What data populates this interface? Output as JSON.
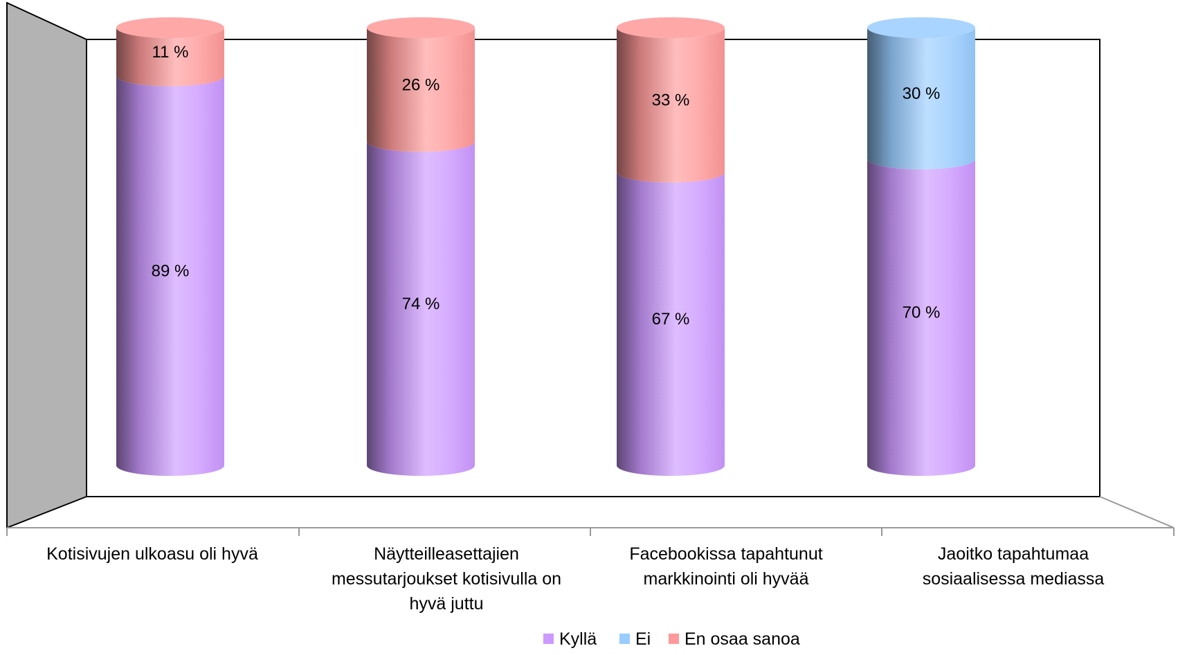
{
  "chart_data": {
    "type": "bar",
    "stacked": true,
    "percent_stacked": true,
    "three_d": "cylinder",
    "categories": [
      [
        "Kotisivujen ulkoasu oli hyvä"
      ],
      [
        "Näytteilleasettajien",
        "messutarjoukset kotisivulla on",
        "hyvä juttu"
      ],
      [
        "Facebookissa tapahtunut",
        "markkinointi oli hyvää"
      ],
      [
        "Jaoitko tapahtumaa",
        "sosiaalisessa mediassa"
      ]
    ],
    "series": [
      {
        "name": "Kyllä",
        "color": "#cc99ff",
        "values": [
          89,
          74,
          67,
          70
        ],
        "labels": [
          "89 %",
          "74 %",
          "67 %",
          "70 %"
        ]
      },
      {
        "name": "Ei",
        "color": "#99ccff",
        "values": [
          0,
          0,
          0,
          30
        ],
        "labels": [
          "",
          "",
          "",
          "30 %"
        ]
      },
      {
        "name": "En osaa sanoa",
        "color": "#ff9999",
        "values": [
          11,
          26,
          33,
          0
        ],
        "labels": [
          "11 %",
          "26 %",
          "33 %",
          ""
        ]
      }
    ],
    "ylim": [
      0,
      100
    ],
    "grid": false,
    "legend_position": "bottom",
    "title": "",
    "xlabel": "",
    "ylabel": ""
  }
}
